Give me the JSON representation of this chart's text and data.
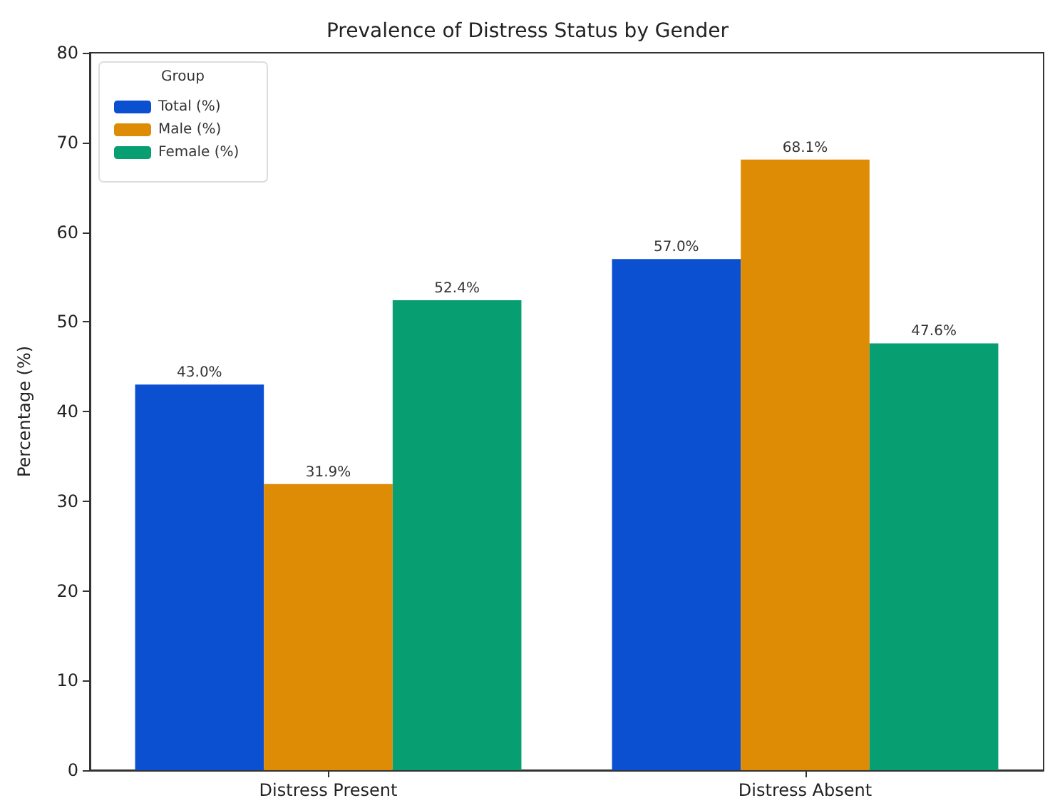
{
  "chart_data": {
    "type": "bar",
    "title": "Prevalence of Distress Status by Gender",
    "ylabel": "Percentage (%)",
    "legend_title": "Group",
    "categories": [
      "Distress Present",
      "Distress Absent"
    ],
    "series": [
      {
        "name": "Total (%)",
        "color": "#0b50d0",
        "values": [
          43.0,
          57.0
        ],
        "value_labels": [
          "43.0%",
          "57.0%"
        ]
      },
      {
        "name": "Male (%)",
        "color": "#de8c06",
        "values": [
          31.9,
          68.1
        ],
        "value_labels": [
          "31.9%",
          "68.1%"
        ]
      },
      {
        "name": "Female (%)",
        "color": "#079e72",
        "values": [
          52.4,
          47.6
        ],
        "value_labels": [
          "52.4%",
          "47.6%"
        ]
      }
    ],
    "ylim": [
      0,
      80
    ],
    "yticks": [
      0,
      10,
      20,
      30,
      40,
      50,
      60,
      70,
      80
    ],
    "grid": false,
    "legend": "top left"
  }
}
